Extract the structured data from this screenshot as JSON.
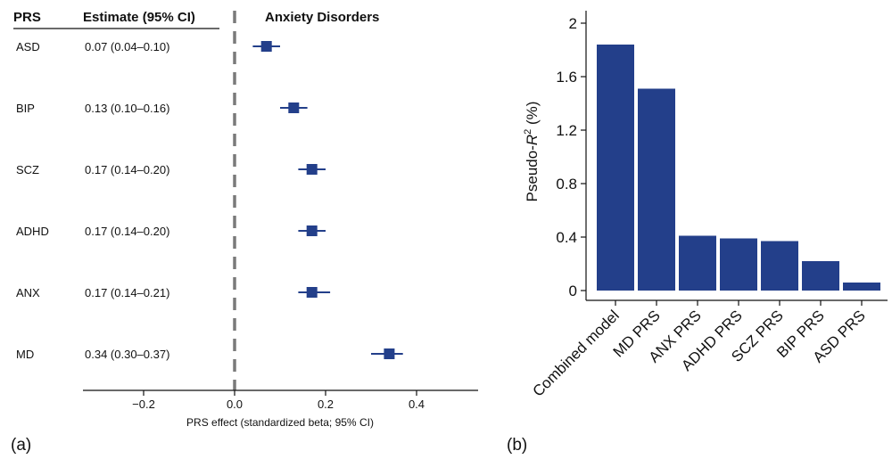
{
  "panel_a": {
    "panel_label": "(a)",
    "col_prs_header": "PRS",
    "col_estimate_header": "Estimate (95% CI)",
    "title": "Anxiety Disorders",
    "xlabel": "PRS effect (standardized beta; 95% CI)",
    "rows": [
      {
        "label": "ASD",
        "estimate_text": "0.07 (0.04–0.10)"
      },
      {
        "label": "BIP",
        "estimate_text": "0.13 (0.10–0.16)"
      },
      {
        "label": "SCZ",
        "estimate_text": "0.17 (0.14–0.20)"
      },
      {
        "label": "ADHD",
        "estimate_text": "0.17 (0.14–0.20)"
      },
      {
        "label": "ANX",
        "estimate_text": "0.17 (0.14–0.21)"
      },
      {
        "label": "MD",
        "estimate_text": "0.34 (0.30–0.37)"
      }
    ],
    "xticks": [
      {
        "value": -0.2,
        "label": "−0.2"
      },
      {
        "value": 0.0,
        "label": "0.0"
      },
      {
        "value": 0.2,
        "label": "0.2"
      },
      {
        "value": 0.4,
        "label": "0.4"
      }
    ]
  },
  "panel_b": {
    "panel_label": "(b)",
    "ylabel_prefix": "Pseudo-",
    "ylabel_var": "R",
    "ylabel_sup": "2",
    "ylabel_suffix": " (%)",
    "yticks": [
      "0",
      "0.4",
      "0.8",
      "1.2",
      "1.6",
      "2"
    ]
  },
  "colors": {
    "bar": "#233f8a",
    "marker": "#233f8a",
    "zero_line": "#7a7a7a",
    "axis": "#111111"
  },
  "chart_data": [
    {
      "type": "scatter",
      "subtype": "forest_plot",
      "title": "Anxiety Disorders",
      "xlabel": "PRS effect (standardized beta; 95% CI)",
      "ylabel": "",
      "categories": [
        "ASD",
        "BIP",
        "SCZ",
        "ADHD",
        "ANX",
        "MD"
      ],
      "estimates": [
        0.07,
        0.13,
        0.17,
        0.17,
        0.17,
        0.34
      ],
      "ci_lower": [
        0.04,
        0.1,
        0.14,
        0.14,
        0.14,
        0.3
      ],
      "ci_upper": [
        0.1,
        0.16,
        0.2,
        0.2,
        0.21,
        0.37
      ],
      "xlim": [
        -0.33,
        0.54
      ],
      "reference_line": 0,
      "grid": false
    },
    {
      "type": "bar",
      "title": "",
      "xlabel": "",
      "ylabel": "Pseudo-R2 (%)",
      "categories": [
        "Combined model",
        "MD PRS",
        "ANX PRS",
        "ADHD PRS",
        "SCZ PRS",
        "BIP PRS",
        "ASD PRS"
      ],
      "values": [
        1.84,
        1.51,
        0.41,
        0.39,
        0.37,
        0.22,
        0.06
      ],
      "ylim": [
        0,
        2.1
      ],
      "yticks": [
        0,
        0.4,
        0.8,
        1.2,
        1.6,
        2
      ],
      "grid": false
    }
  ]
}
